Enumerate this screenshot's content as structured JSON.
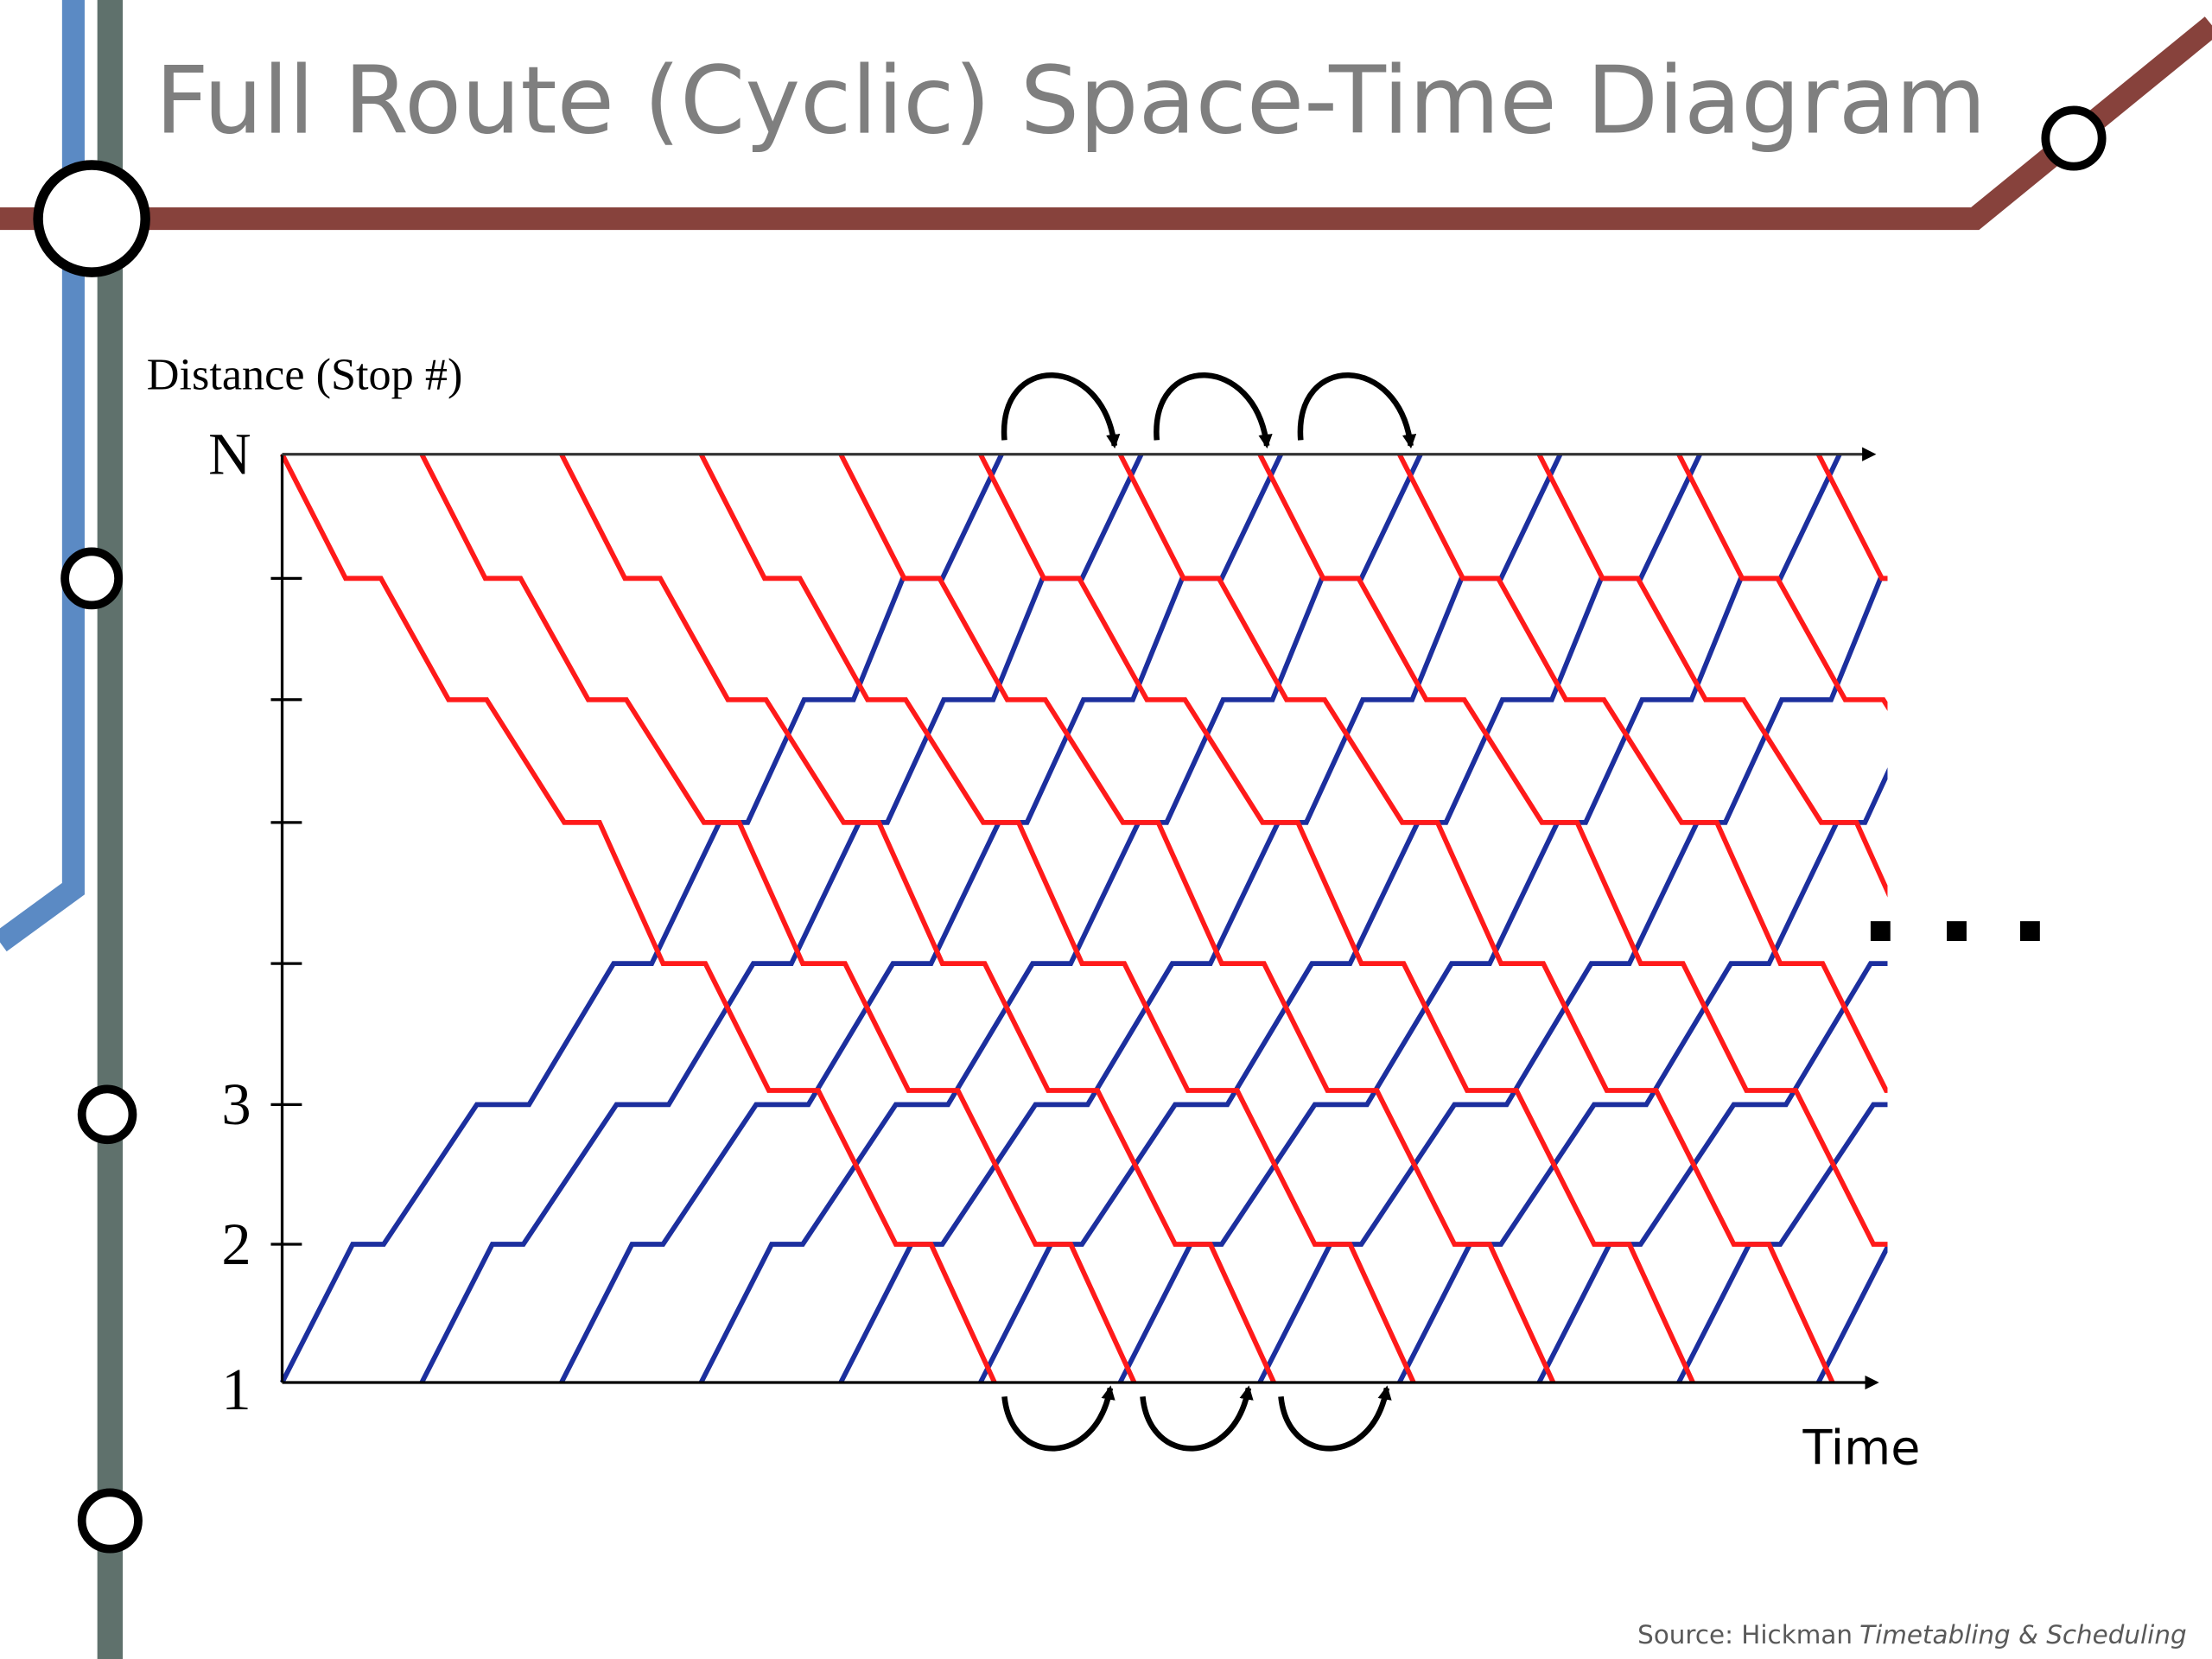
{
  "header": {
    "title": "Full Route (Cyclic) Space-Time Diagram"
  },
  "diagram": {
    "y_axis_label": "Distance (Stop #)",
    "y_tick_labels": [
      "N",
      "3",
      "2",
      "1"
    ],
    "x_axis_label": "Time"
  },
  "footer": {
    "source": "Source: Hickman",
    "work": "Timetabling & Scheduling"
  }
}
